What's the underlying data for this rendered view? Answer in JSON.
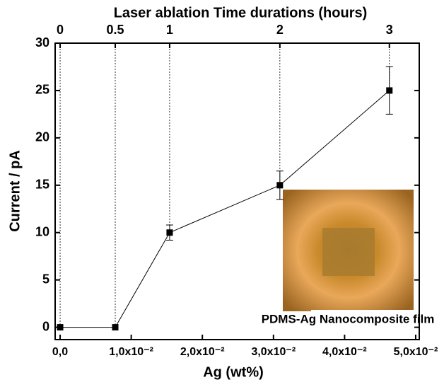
{
  "chart_data": {
    "type": "line",
    "title": "Laser ablation Time durations (hours)",
    "x_label": "Ag (wt%)",
    "y_label": "Current / pA",
    "x": [
      0,
      0.00775,
      0.0154,
      0.0309,
      0.0463
    ],
    "series": [
      {
        "color": "#000000",
        "values": [
          0,
          0,
          10,
          15,
          25
        ],
        "errors": [
          null,
          null,
          0.8,
          1.5,
          2.5
        ]
      }
    ],
    "x2ticks": [
      0,
      0.5,
      1,
      2,
      3
    ],
    "xlim": [
      -0.0007,
      0.0505
    ],
    "ylim": [
      -1.3,
      30
    ],
    "xticks": [
      {
        "value": 0,
        "label": "0,0"
      },
      {
        "value": 0.01,
        "label": "1,0x10⁻²"
      },
      {
        "value": 0.02,
        "label": "2,0x10⁻²"
      },
      {
        "value": 0.03,
        "label": "3,0x10⁻²"
      },
      {
        "value": 0.04,
        "label": "4,0x10⁻²"
      },
      {
        "value": 0.05,
        "label": "5,0x10⁻²"
      }
    ],
    "yticks": [
      0,
      5,
      10,
      15,
      20,
      25,
      30
    ],
    "annotation": "PDMS-Ag Nanocomposite film"
  }
}
